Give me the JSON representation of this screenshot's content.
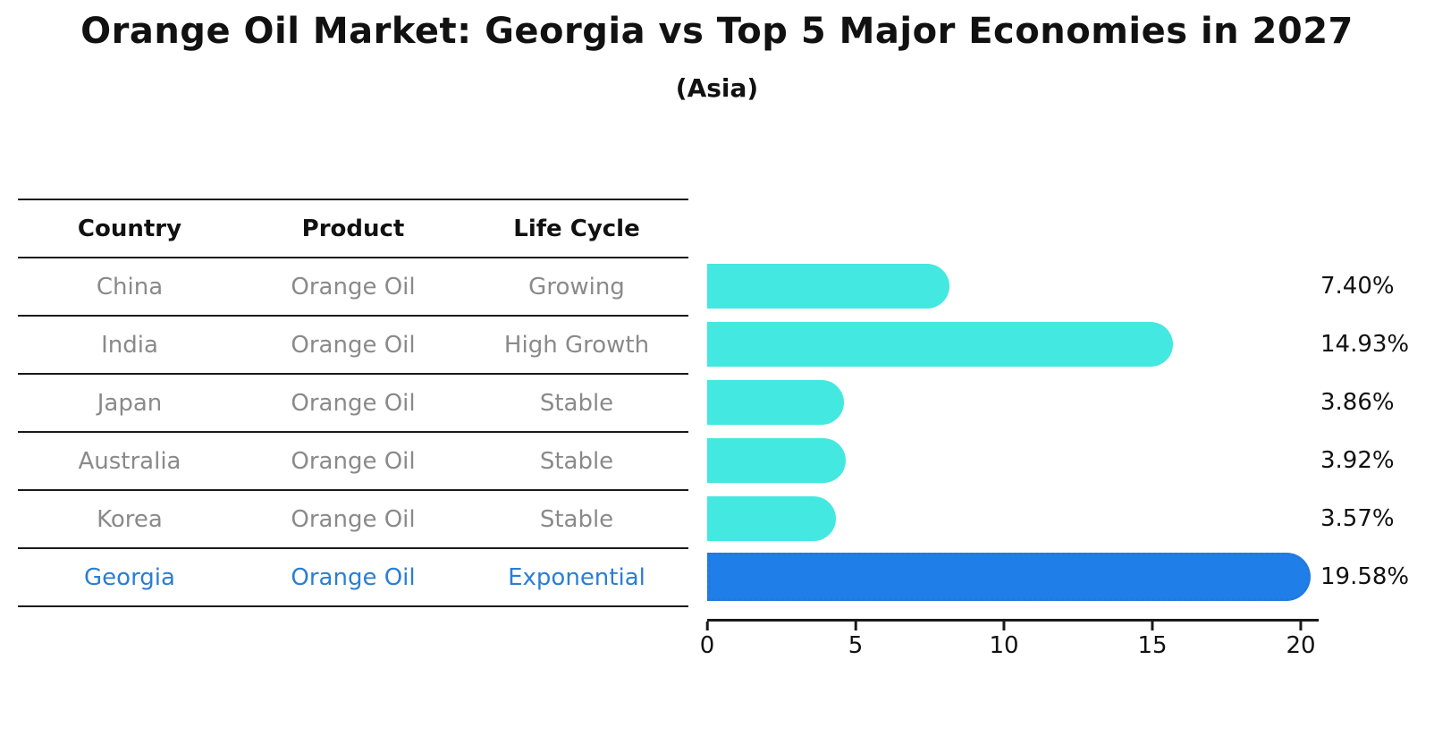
{
  "header": {
    "title": "Orange Oil Market: Georgia vs Top 5 Major Economies in 2027",
    "subtitle": "(Asia)"
  },
  "table": {
    "headers": [
      "Country",
      "Product",
      "Life Cycle"
    ],
    "rows": [
      {
        "country": "China",
        "product": "Orange Oil",
        "life_cycle": "Growing"
      },
      {
        "country": "India",
        "product": "Orange Oil",
        "life_cycle": "High Growth"
      },
      {
        "country": "Japan",
        "product": "Orange Oil",
        "life_cycle": "Stable"
      },
      {
        "country": "Australia",
        "product": "Orange Oil",
        "life_cycle": "Stable"
      },
      {
        "country": "Korea",
        "product": "Orange Oil",
        "life_cycle": "Stable"
      },
      {
        "country": "Georgia",
        "product": "Orange Oil",
        "life_cycle": "Exponential"
      }
    ],
    "highlight_row": "Georgia"
  },
  "chart_data": {
    "type": "bar",
    "orientation": "horizontal",
    "title": "Orange Oil Market: Georgia vs Top 5 Major Economies in 2027",
    "subtitle": "(Asia)",
    "categories": [
      "China",
      "India",
      "Japan",
      "Australia",
      "Korea",
      "Georgia"
    ],
    "values": [
      7.4,
      14.93,
      3.86,
      3.92,
      3.57,
      19.58
    ],
    "value_labels": [
      "7.40%",
      "14.93%",
      "3.86%",
      "3.92%",
      "3.57%",
      "19.58%"
    ],
    "x_ticks": [
      0,
      5,
      10,
      15,
      20
    ],
    "xlim": [
      0,
      20.6
    ],
    "grid": false,
    "legend": null,
    "highlight_index": 5,
    "colors": {
      "bar": "#43e8e0",
      "highlight_bar": "#1f7ee8",
      "highlight_border": "#2577d8",
      "highlight_text": "#2b7ed3",
      "table_text": "#8a8a8a",
      "heading_text": "#111111",
      "axis": "#1a1a1a",
      "background": "#ffffff"
    }
  }
}
